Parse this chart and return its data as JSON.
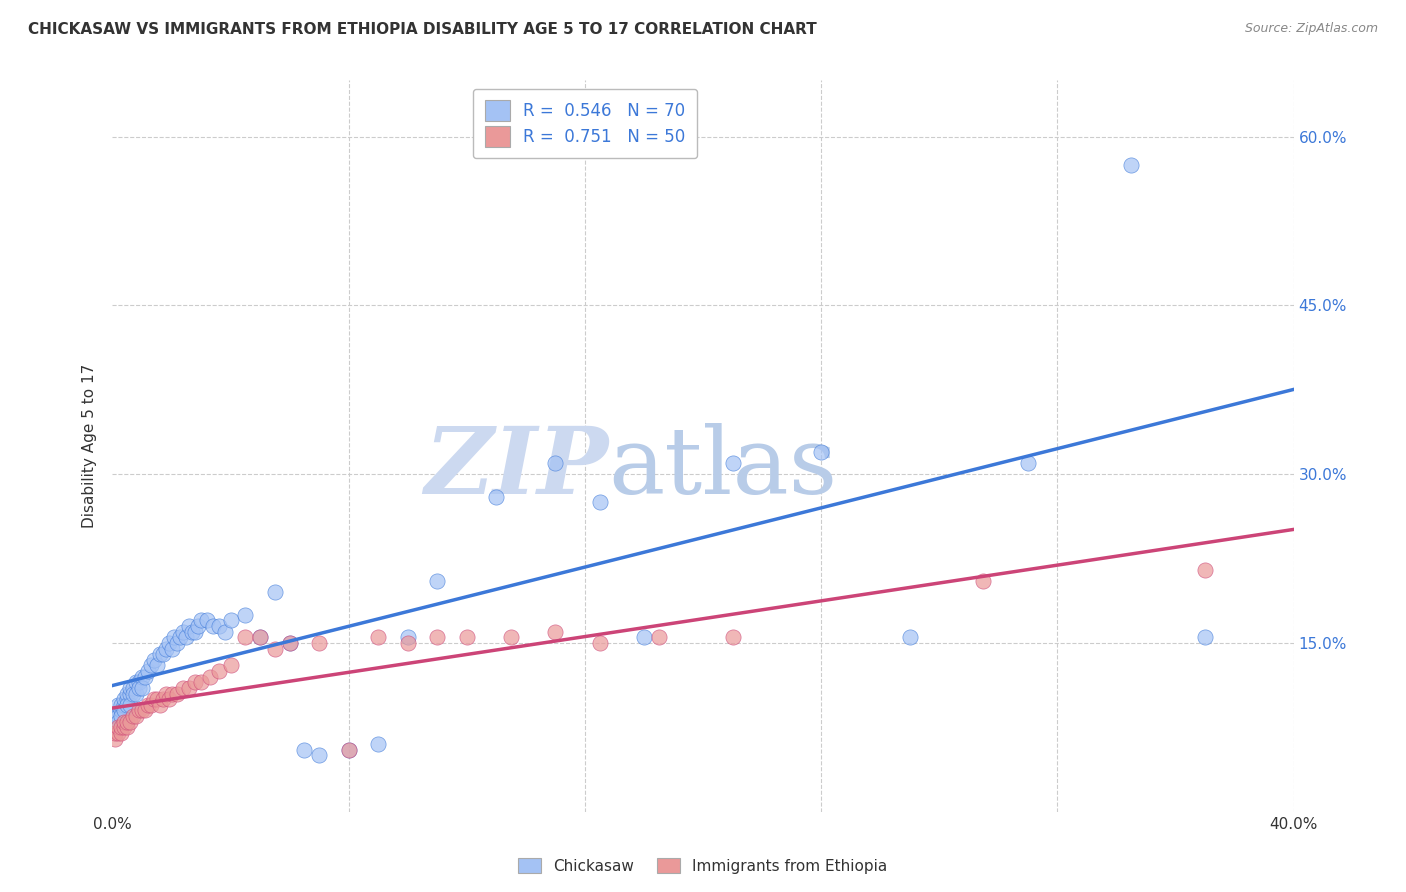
{
  "title": "CHICKASAW VS IMMIGRANTS FROM ETHIOPIA DISABILITY AGE 5 TO 17 CORRELATION CHART",
  "source": "Source: ZipAtlas.com",
  "ylabel": "Disability Age 5 to 17",
  "xlim": [
    0.0,
    0.4
  ],
  "ylim": [
    0.0,
    0.65
  ],
  "r_chickasaw": 0.546,
  "n_chickasaw": 70,
  "r_ethiopia": 0.751,
  "n_ethiopia": 50,
  "blue_color": "#a4c2f4",
  "pink_color": "#ea9999",
  "blue_line_color": "#3c78d8",
  "pink_line_color": "#cc4477",
  "legend_text_color": "#3c78d8",
  "background_color": "#ffffff",
  "grid_color": "#cccccc",
  "watermark_zip_color": "#ccd9f0",
  "watermark_atlas_color": "#b8cce8",
  "right_tick_color": "#3c78d8",
  "chickasaw_x": [
    0.001,
    0.001,
    0.002,
    0.002,
    0.002,
    0.003,
    0.003,
    0.003,
    0.004,
    0.004,
    0.004,
    0.005,
    0.005,
    0.005,
    0.006,
    0.006,
    0.006,
    0.007,
    0.007,
    0.008,
    0.008,
    0.009,
    0.009,
    0.01,
    0.01,
    0.011,
    0.012,
    0.013,
    0.014,
    0.015,
    0.016,
    0.017,
    0.018,
    0.019,
    0.02,
    0.021,
    0.022,
    0.023,
    0.024,
    0.025,
    0.026,
    0.027,
    0.028,
    0.029,
    0.03,
    0.032,
    0.034,
    0.036,
    0.038,
    0.04,
    0.045,
    0.05,
    0.055,
    0.06,
    0.065,
    0.07,
    0.08,
    0.09,
    0.1,
    0.11,
    0.13,
    0.15,
    0.165,
    0.18,
    0.21,
    0.24,
    0.27,
    0.31,
    0.345,
    0.37
  ],
  "chickasaw_y": [
    0.075,
    0.085,
    0.085,
    0.095,
    0.08,
    0.09,
    0.095,
    0.085,
    0.095,
    0.1,
    0.09,
    0.1,
    0.105,
    0.095,
    0.105,
    0.11,
    0.095,
    0.11,
    0.105,
    0.115,
    0.105,
    0.115,
    0.11,
    0.12,
    0.11,
    0.12,
    0.125,
    0.13,
    0.135,
    0.13,
    0.14,
    0.14,
    0.145,
    0.15,
    0.145,
    0.155,
    0.15,
    0.155,
    0.16,
    0.155,
    0.165,
    0.16,
    0.16,
    0.165,
    0.17,
    0.17,
    0.165,
    0.165,
    0.16,
    0.17,
    0.175,
    0.155,
    0.195,
    0.15,
    0.055,
    0.05,
    0.055,
    0.06,
    0.155,
    0.205,
    0.28,
    0.31,
    0.275,
    0.155,
    0.31,
    0.32,
    0.155,
    0.31,
    0.575,
    0.155
  ],
  "ethiopia_x": [
    0.001,
    0.001,
    0.002,
    0.002,
    0.003,
    0.003,
    0.004,
    0.004,
    0.005,
    0.005,
    0.006,
    0.007,
    0.008,
    0.009,
    0.01,
    0.011,
    0.012,
    0.013,
    0.014,
    0.015,
    0.016,
    0.017,
    0.018,
    0.019,
    0.02,
    0.022,
    0.024,
    0.026,
    0.028,
    0.03,
    0.033,
    0.036,
    0.04,
    0.045,
    0.05,
    0.055,
    0.06,
    0.07,
    0.08,
    0.09,
    0.1,
    0.11,
    0.12,
    0.135,
    0.15,
    0.165,
    0.185,
    0.21,
    0.295,
    0.37
  ],
  "ethiopia_y": [
    0.065,
    0.07,
    0.07,
    0.075,
    0.07,
    0.075,
    0.075,
    0.08,
    0.075,
    0.08,
    0.08,
    0.085,
    0.085,
    0.09,
    0.09,
    0.09,
    0.095,
    0.095,
    0.1,
    0.1,
    0.095,
    0.1,
    0.105,
    0.1,
    0.105,
    0.105,
    0.11,
    0.11,
    0.115,
    0.115,
    0.12,
    0.125,
    0.13,
    0.155,
    0.155,
    0.145,
    0.15,
    0.15,
    0.055,
    0.155,
    0.15,
    0.155,
    0.155,
    0.155,
    0.16,
    0.15,
    0.155,
    0.155,
    0.205,
    0.215
  ]
}
